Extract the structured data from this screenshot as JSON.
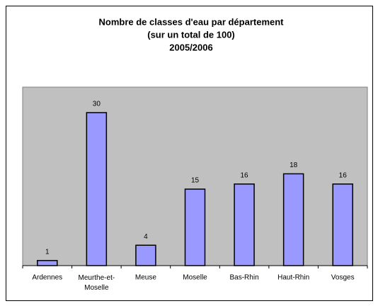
{
  "chart_data": {
    "type": "bar",
    "title_lines": [
      "Nombre de classes d'eau par département",
      "(sur un total de 100)",
      "2005/2006"
    ],
    "categories": [
      "Ardennes",
      "Meurthe-et-Moselle",
      "Meuse",
      "Moselle",
      "Bas-Rhin",
      "Haut-Rhin",
      "Vosges"
    ],
    "values": [
      1,
      30,
      4,
      15,
      16,
      18,
      16
    ],
    "color": "#9999ff",
    "plot_background": "#c0c0c0",
    "ylim": [
      0,
      35
    ],
    "grid": false
  }
}
